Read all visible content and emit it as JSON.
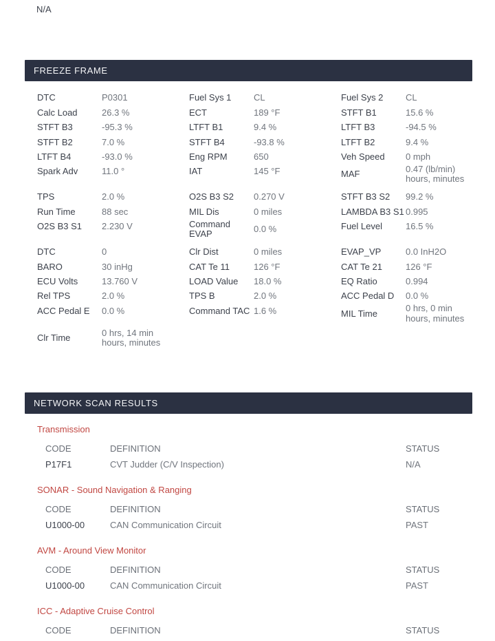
{
  "page": {
    "top_status": "N/A"
  },
  "colors": {
    "section_bar_bg": "#2b3142",
    "section_bar_text": "#f4f5f7",
    "label_text": "#3d424c",
    "value_text": "#70757d",
    "module_name_red": "#c14742"
  },
  "freeze_frame": {
    "title": "FREEZE FRAME",
    "groups": [
      {
        "columns": [
          {
            "rows": [
              {
                "label": "DTC",
                "value": "P0301"
              },
              {
                "label": "Calc Load",
                "value": "26.3 %"
              },
              {
                "label": "STFT B3",
                "value": "-95.3 %"
              },
              {
                "label": "STFT B2",
                "value": "7.0 %"
              },
              {
                "label": "LTFT B4",
                "value": "-93.0 %"
              },
              {
                "label": "Spark Adv",
                "value": "11.0 °"
              }
            ]
          },
          {
            "rows": [
              {
                "label": "Fuel Sys 1",
                "value": "CL"
              },
              {
                "label": "ECT",
                "value": "189 °F"
              },
              {
                "label": "LTFT B1",
                "value": "9.4 %"
              },
              {
                "label": "STFT B4",
                "value": "-93.8 %"
              },
              {
                "label": "Eng RPM",
                "value": "650"
              },
              {
                "label": "IAT",
                "value": "145 °F"
              }
            ]
          },
          {
            "rows": [
              {
                "label": "Fuel Sys 2",
                "value": "CL"
              },
              {
                "label": "STFT B1",
                "value": "15.6 %"
              },
              {
                "label": "LTFT B3",
                "value": "-94.5 %"
              },
              {
                "label": "LTFT B2",
                "value": "9.4 %"
              },
              {
                "label": "Veh Speed",
                "value": "0 mph"
              },
              {
                "label": "MAF",
                "value": "0.47 (lb/min)\nhours, minutes"
              }
            ]
          }
        ]
      },
      {
        "columns": [
          {
            "rows": [
              {
                "label": "TPS",
                "value": "2.0 %"
              },
              {
                "label": "Run Time",
                "value": "88 sec"
              },
              {
                "label": "O2S B3 S1",
                "value": "2.230 V"
              }
            ]
          },
          {
            "rows": [
              {
                "label": "O2S B3 S2",
                "value": "0.270 V"
              },
              {
                "label": "MIL Dis",
                "value": "0 miles"
              },
              {
                "label": "Command\nEVAP",
                "value": "0.0 %"
              }
            ]
          },
          {
            "rows": [
              {
                "label": "STFT B3 S2",
                "value": "99.2 %"
              },
              {
                "label": "LAMBDA B3 S1",
                "value": "0.995"
              },
              {
                "label": "Fuel Level",
                "value": "16.5 %"
              }
            ]
          }
        ]
      },
      {
        "columns": [
          {
            "rows": [
              {
                "label": "DTC",
                "value": "0"
              },
              {
                "label": "BARO",
                "value": "30 inHg"
              },
              {
                "label": "ECU Volts",
                "value": "13.760 V"
              },
              {
                "label": "Rel TPS",
                "value": "2.0 %"
              },
              {
                "label": "ACC Pedal E",
                "value": "0.0 %"
              },
              {
                "label": "Clr Time",
                "value": "0 hrs, 14 min\nhours, minutes",
                "extra_gap": true
              }
            ]
          },
          {
            "rows": [
              {
                "label": "Clr Dist",
                "value": "0 miles"
              },
              {
                "label": "CAT Te 11",
                "value": "126 °F"
              },
              {
                "label": "LOAD Value",
                "value": "18.0 %"
              },
              {
                "label": "TPS B",
                "value": "2.0 %"
              },
              {
                "label": "Command TAC",
                "value": "1.6 %"
              }
            ]
          },
          {
            "rows": [
              {
                "label": "EVAP_VP",
                "value": "0.0 InH2O"
              },
              {
                "label": "CAT Te 21",
                "value": "126 °F"
              },
              {
                "label": "EQ Ratio",
                "value": "0.994"
              },
              {
                "label": "ACC Pedal D",
                "value": "0.0 %"
              },
              {
                "label": "MIL Time",
                "value": "0 hrs, 0 min\nhours, minutes"
              }
            ]
          }
        ]
      }
    ]
  },
  "network_scan": {
    "title": "NETWORK SCAN RESULTS",
    "table_headers": {
      "code": "CODE",
      "definition": "DEFINITION",
      "status": "STATUS"
    },
    "modules": [
      {
        "name": "Transmission",
        "rows": [
          {
            "code": "P17F1",
            "definition": "CVT Judder (C/V Inspection)",
            "status": "N/A"
          }
        ]
      },
      {
        "name": "SONAR - Sound Navigation & Ranging",
        "rows": [
          {
            "code": "U1000-00",
            "definition": "CAN Communication Circuit",
            "status": "PAST"
          }
        ]
      },
      {
        "name": "AVM - Around View Monitor",
        "rows": [
          {
            "code": "U1000-00",
            "definition": "CAN Communication Circuit",
            "status": "PAST"
          }
        ]
      },
      {
        "name": "ICC - Adaptive Cruise Control",
        "rows": []
      }
    ]
  }
}
